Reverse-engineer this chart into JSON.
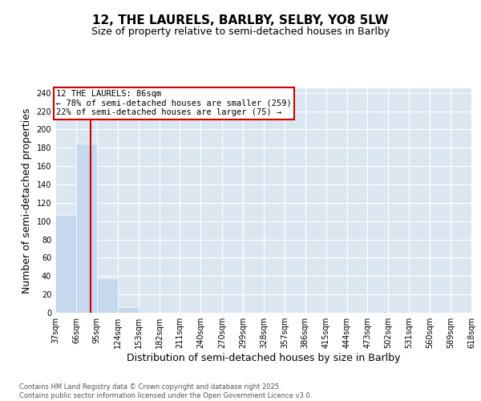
{
  "title_line1": "12, THE LAURELS, BARLBY, SELBY, YO8 5LW",
  "title_line2": "Size of property relative to semi-detached houses in Barlby",
  "xlabel": "Distribution of semi-detached houses by size in Barlby",
  "ylabel": "Number of semi-detached properties",
  "bin_edges": [
    37,
    66,
    95,
    124,
    153,
    182,
    211,
    240,
    270,
    299,
    328,
    357,
    386,
    415,
    444,
    473,
    502,
    531,
    560,
    589,
    618
  ],
  "bar_heights": [
    107,
    185,
    38,
    6,
    0,
    0,
    0,
    0,
    0,
    0,
    0,
    0,
    0,
    0,
    0,
    0,
    0,
    0,
    0,
    0
  ],
  "bar_color": "#c5d8ee",
  "grid_color": "#ffffff",
  "background_color": "#dce6f1",
  "property_size": 86,
  "property_line_color": "#cc0000",
  "annotation_text": "12 THE LAURELS: 86sqm\n← 78% of semi-detached houses are smaller (259)\n22% of semi-detached houses are larger (75) →",
  "annotation_box_color": "#cc0000",
  "ylim": [
    0,
    245
  ],
  "yticks": [
    0,
    20,
    40,
    60,
    80,
    100,
    120,
    140,
    160,
    180,
    200,
    220,
    240
  ],
  "footer_text": "Contains HM Land Registry data © Crown copyright and database right 2025.\nContains public sector information licensed under the Open Government Licence v3.0.",
  "tick_label_fontsize": 7,
  "axis_label_fontsize": 9,
  "title_fontsize1": 11,
  "title_fontsize2": 9
}
